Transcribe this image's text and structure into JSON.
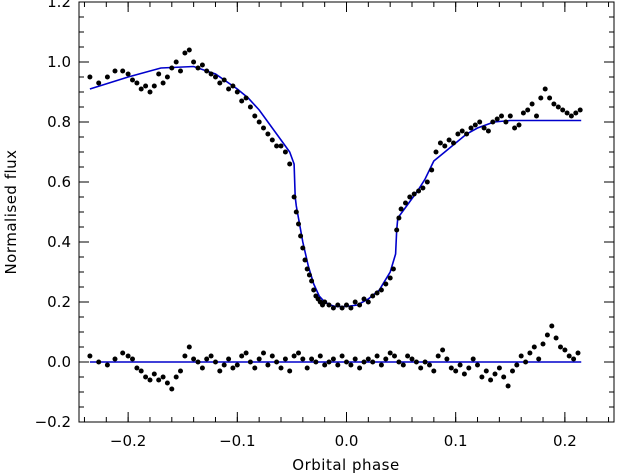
{
  "chart_data": {
    "type": "scatter",
    "title": "",
    "xlabel": "Orbital phase",
    "ylabel": "Normalised flux",
    "xlim": [
      -0.245,
      0.245
    ],
    "ylim": [
      -0.2,
      1.2
    ],
    "x_ticks": [
      -0.2,
      -0.1,
      0.0,
      0.1,
      0.2
    ],
    "x_tick_labels": [
      "−0.2",
      "−0.1",
      "0.0",
      "0.1",
      "0.2"
    ],
    "y_ticks": [
      -0.2,
      0.0,
      0.2,
      0.4,
      0.6,
      0.8,
      1.0,
      1.2
    ],
    "y_tick_labels": [
      "−0.2",
      "0.0",
      "0.2",
      "0.4",
      "0.6",
      "0.8",
      "1.0",
      "1.2"
    ],
    "grid": false,
    "legend": "none",
    "colors": {
      "points": "#000000",
      "model": "#0000cc",
      "frame": "#000000"
    },
    "series": [
      {
        "kind": "points",
        "x": [
          -0.235,
          -0.227,
          -0.219,
          -0.212,
          -0.205,
          -0.2,
          -0.196,
          -0.192,
          -0.188,
          -0.184,
          -0.18,
          -0.176,
          -0.172,
          -0.168,
          -0.164,
          -0.16,
          -0.156,
          -0.152,
          -0.148,
          -0.144,
          -0.14,
          -0.136,
          -0.132,
          -0.128,
          -0.124,
          -0.12,
          -0.116,
          -0.112,
          -0.108,
          -0.104,
          -0.1,
          -0.096,
          -0.092,
          -0.088,
          -0.084,
          -0.08,
          -0.076,
          -0.072,
          -0.068,
          -0.064,
          -0.06,
          -0.056,
          -0.052,
          -0.048,
          -0.046,
          -0.044,
          -0.042,
          -0.04,
          -0.038,
          -0.036,
          -0.034,
          -0.032,
          -0.03,
          -0.028,
          -0.026,
          -0.024,
          -0.022,
          -0.02,
          -0.016,
          -0.012,
          -0.008,
          -0.004,
          0.0,
          0.004,
          0.008,
          0.012,
          0.016,
          0.02,
          0.024,
          0.028,
          0.032,
          0.036,
          0.04,
          0.043,
          0.046,
          0.048,
          0.05,
          0.054,
          0.058,
          0.062,
          0.066,
          0.07,
          0.074,
          0.078,
          0.082,
          0.086,
          0.09,
          0.094,
          0.098,
          0.102,
          0.106,
          0.11,
          0.114,
          0.118,
          0.122,
          0.126,
          0.13,
          0.134,
          0.138,
          0.142,
          0.146,
          0.15,
          0.154,
          0.158,
          0.162,
          0.166,
          0.17,
          0.174,
          0.178,
          0.182,
          0.186,
          0.19,
          0.194,
          0.198,
          0.202,
          0.206,
          0.21,
          0.214
        ],
        "y": [
          0.95,
          0.93,
          0.95,
          0.97,
          0.97,
          0.96,
          0.94,
          0.93,
          0.91,
          0.92,
          0.9,
          0.92,
          0.96,
          0.93,
          0.95,
          0.98,
          1.0,
          0.97,
          1.03,
          1.04,
          1.0,
          0.98,
          0.99,
          0.97,
          0.96,
          0.95,
          0.93,
          0.94,
          0.91,
          0.92,
          0.9,
          0.87,
          0.88,
          0.85,
          0.82,
          0.8,
          0.78,
          0.76,
          0.74,
          0.72,
          0.72,
          0.7,
          0.66,
          0.55,
          0.5,
          0.46,
          0.42,
          0.38,
          0.34,
          0.31,
          0.29,
          0.27,
          0.24,
          0.22,
          0.21,
          0.2,
          0.19,
          0.2,
          0.19,
          0.18,
          0.19,
          0.18,
          0.19,
          0.18,
          0.2,
          0.19,
          0.21,
          0.2,
          0.22,
          0.23,
          0.24,
          0.26,
          0.28,
          0.31,
          0.44,
          0.48,
          0.51,
          0.53,
          0.55,
          0.56,
          0.57,
          0.58,
          0.6,
          0.64,
          0.7,
          0.73,
          0.72,
          0.74,
          0.73,
          0.76,
          0.77,
          0.76,
          0.78,
          0.79,
          0.8,
          0.78,
          0.77,
          0.8,
          0.81,
          0.82,
          0.8,
          0.82,
          0.78,
          0.79,
          0.83,
          0.84,
          0.86,
          0.82,
          0.88,
          0.91,
          0.88,
          0.86,
          0.85,
          0.84,
          0.83,
          0.82,
          0.83,
          0.84
        ]
      },
      {
        "kind": "model",
        "x": [
          -0.235,
          -0.2,
          -0.17,
          -0.14,
          -0.12,
          -0.1,
          -0.09,
          -0.08,
          -0.07,
          -0.06,
          -0.052,
          -0.048,
          -0.047,
          -0.046,
          -0.04,
          -0.035,
          -0.03,
          -0.025,
          -0.02,
          -0.015,
          -0.01,
          -0.005,
          0.0,
          0.01,
          0.02,
          0.03,
          0.04,
          0.045,
          0.046,
          0.047,
          0.055,
          0.065,
          0.072,
          0.08,
          0.09,
          0.1,
          0.11,
          0.12,
          0.135,
          0.15,
          0.18,
          0.215
        ],
        "y": [
          0.91,
          0.95,
          0.98,
          0.985,
          0.96,
          0.91,
          0.88,
          0.84,
          0.79,
          0.74,
          0.7,
          0.66,
          0.55,
          0.52,
          0.4,
          0.32,
          0.26,
          0.22,
          0.2,
          0.19,
          0.185,
          0.185,
          0.185,
          0.19,
          0.21,
          0.24,
          0.3,
          0.36,
          0.44,
          0.48,
          0.52,
          0.57,
          0.61,
          0.67,
          0.7,
          0.73,
          0.76,
          0.78,
          0.8,
          0.805,
          0.805,
          0.805
        ]
      },
      {
        "kind": "residuals",
        "x": [
          -0.235,
          -0.227,
          -0.219,
          -0.212,
          -0.205,
          -0.2,
          -0.196,
          -0.192,
          -0.188,
          -0.184,
          -0.18,
          -0.176,
          -0.172,
          -0.168,
          -0.164,
          -0.16,
          -0.156,
          -0.152,
          -0.148,
          -0.144,
          -0.14,
          -0.136,
          -0.132,
          -0.128,
          -0.124,
          -0.12,
          -0.116,
          -0.112,
          -0.108,
          -0.104,
          -0.1,
          -0.096,
          -0.092,
          -0.088,
          -0.084,
          -0.08,
          -0.076,
          -0.072,
          -0.068,
          -0.064,
          -0.06,
          -0.056,
          -0.052,
          -0.048,
          -0.044,
          -0.04,
          -0.036,
          -0.032,
          -0.028,
          -0.024,
          -0.02,
          -0.016,
          -0.012,
          -0.008,
          -0.004,
          0.0,
          0.004,
          0.008,
          0.012,
          0.016,
          0.02,
          0.024,
          0.028,
          0.032,
          0.036,
          0.04,
          0.044,
          0.048,
          0.052,
          0.056,
          0.06,
          0.064,
          0.068,
          0.072,
          0.076,
          0.08,
          0.084,
          0.088,
          0.092,
          0.096,
          0.1,
          0.104,
          0.108,
          0.112,
          0.116,
          0.12,
          0.124,
          0.128,
          0.132,
          0.136,
          0.14,
          0.144,
          0.148,
          0.152,
          0.156,
          0.16,
          0.164,
          0.168,
          0.172,
          0.176,
          0.18,
          0.184,
          0.188,
          0.192,
          0.196,
          0.2,
          0.204,
          0.208,
          0.212
        ],
        "y": [
          0.02,
          0.0,
          -0.01,
          0.01,
          0.03,
          0.02,
          0.01,
          -0.02,
          -0.03,
          -0.05,
          -0.06,
          -0.04,
          -0.06,
          -0.05,
          -0.07,
          -0.09,
          -0.05,
          -0.03,
          0.02,
          0.05,
          0.01,
          0.0,
          -0.02,
          0.01,
          0.02,
          0.0,
          -0.03,
          -0.01,
          0.01,
          -0.02,
          -0.01,
          0.02,
          0.03,
          0.0,
          -0.02,
          0.01,
          0.03,
          -0.01,
          0.02,
          0.0,
          -0.02,
          0.01,
          -0.03,
          0.02,
          0.03,
          0.01,
          -0.02,
          0.01,
          0.0,
          0.02,
          -0.01,
          0.0,
          0.01,
          -0.01,
          0.02,
          0.0,
          -0.01,
          0.01,
          -0.02,
          0.0,
          0.01,
          0.0,
          0.02,
          -0.01,
          0.01,
          0.03,
          0.02,
          0.0,
          -0.01,
          0.02,
          0.01,
          0.0,
          -0.02,
          0.0,
          -0.01,
          -0.03,
          0.02,
          0.04,
          0.01,
          -0.02,
          -0.03,
          -0.01,
          -0.04,
          -0.02,
          0.01,
          -0.01,
          -0.05,
          -0.03,
          -0.06,
          -0.04,
          -0.02,
          -0.05,
          -0.08,
          -0.03,
          -0.01,
          0.02,
          0.0,
          0.03,
          0.05,
          0.01,
          0.06,
          0.09,
          0.12,
          0.08,
          0.05,
          0.04,
          0.02,
          0.01,
          0.03
        ]
      },
      {
        "kind": "zero_line",
        "x": [
          -0.235,
          0.215
        ],
        "y": [
          0.0,
          0.0
        ]
      }
    ]
  }
}
